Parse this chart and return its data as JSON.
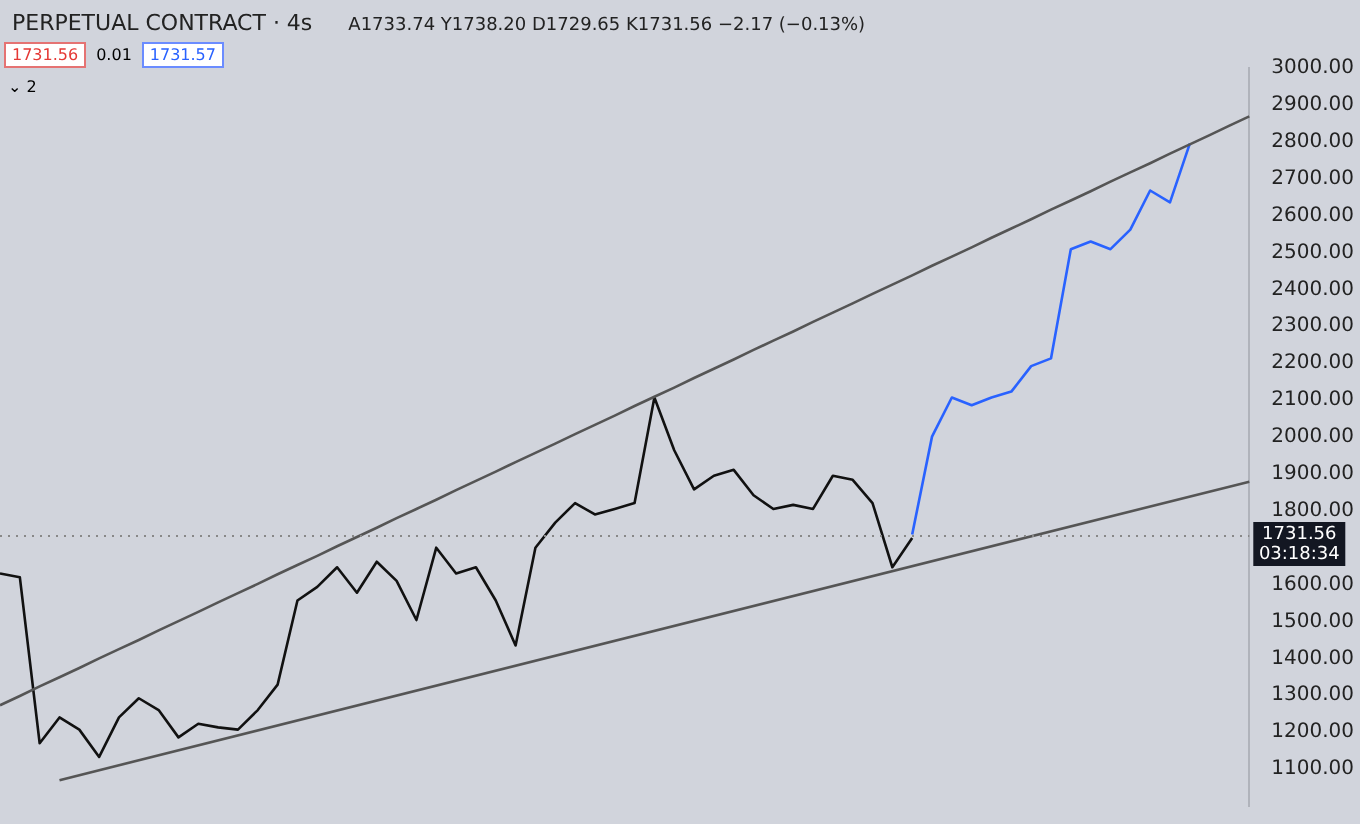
{
  "chart_data": {
    "type": "line",
    "title": "PERPETUAL CONTRACT · 4s",
    "subtitle": "A1733.74 Y1738.20 D1729.65 K1731.56 −2.17 (−0.13%)",
    "annotations": [
      "1731.56",
      "0.01",
      "1731.57",
      "⌄ 2",
      "03:18:34"
    ],
    "categories": [
      null,
      null,
      null,
      null,
      null,
      null,
      null,
      null,
      null,
      null,
      null,
      null,
      null,
      null,
      null,
      null,
      null,
      null,
      null,
      null,
      null,
      null,
      null,
      null,
      null,
      null,
      null,
      null,
      null,
      null,
      null,
      null,
      null,
      null,
      null,
      null,
      null,
      null,
      null,
      null,
      null,
      null,
      null,
      null,
      null,
      null,
      null,
      null,
      null,
      null,
      null,
      null,
      null,
      null,
      null,
      null,
      null,
      null,
      null,
      null,
      null,
      null,
      null,
      null
    ],
    "series": [
      {
        "color": "#555555",
        "values": [
          1273,
          1298,
          1324,
          1349,
          1374,
          1400,
          1425,
          1450,
          1476,
          1501,
          1526,
          1552,
          1577,
          1602,
          1628,
          1653,
          1678,
          1704,
          1729,
          1754,
          1780,
          1805,
          1830,
          1856,
          1881,
          1906,
          1932,
          1957,
          1982,
          2008,
          2033,
          2058,
          2084,
          2109,
          2134,
          2160,
          2185,
          2210,
          2236,
          2261,
          2286,
          2312,
          2337,
          2362,
          2388,
          2413,
          2438,
          2464,
          2489,
          2514,
          2540,
          2565,
          2590,
          2616,
          2641,
          2666,
          2692,
          2717,
          2742,
          2768,
          2793,
          2818,
          2844,
          2869
        ]
      },
      {
        "color": "#111111",
        "values": [
          1630,
          1620,
          1170,
          1240,
          1207,
          1133,
          1240,
          1292,
          1260,
          1186,
          1223,
          1213,
          1207,
          1260,
          1329,
          1557,
          1594,
          1647,
          1578,
          1662,
          1610,
          1504,
          1700,
          1630,
          1647,
          1557,
          1435,
          1700,
          1768,
          1821,
          1790,
          1805,
          1821,
          2107,
          1964,
          1858,
          1895,
          1911,
          1842,
          1805,
          1816,
          1805,
          1895,
          1884,
          1821,
          1647,
          1726,
          null,
          null,
          null,
          null,
          null,
          null,
          null,
          null,
          null,
          null,
          null,
          null,
          null,
          null,
          null,
          null,
          null
        ]
      },
      {
        "color": "#2962ff",
        "values": [
          null,
          null,
          null,
          null,
          null,
          null,
          null,
          null,
          null,
          null,
          null,
          null,
          null,
          null,
          null,
          null,
          null,
          null,
          null,
          null,
          null,
          null,
          null,
          null,
          null,
          null,
          null,
          null,
          null,
          null,
          null,
          null,
          null,
          null,
          null,
          null,
          null,
          null,
          null,
          null,
          null,
          null,
          null,
          null,
          null,
          null,
          1736,
          2001,
          2107,
          2086,
          2107,
          2123,
          2192,
          2213,
          2509,
          2530,
          2509,
          2562,
          2668,
          2636,
          2795,
          null,
          null,
          null
        ]
      },
      {
        "color": "#555555",
        "values": [
          null,
          null,
          null,
          1070,
          null,
          null,
          null,
          null,
          null,
          null,
          null,
          null,
          null,
          null,
          null,
          null,
          null,
          null,
          null,
          null,
          null,
          null,
          null,
          null,
          null,
          null,
          null,
          null,
          null,
          null,
          null,
          null,
          null,
          null,
          null,
          null,
          null,
          null,
          null,
          null,
          null,
          null,
          null,
          null,
          null,
          null,
          null,
          null,
          null,
          null,
          null,
          null,
          null,
          null,
          null,
          null,
          null,
          null,
          null,
          null,
          null,
          null,
          null,
          1879
        ]
      }
    ],
    "ylim": [
      1000,
      3000
    ],
    "yticks": [
      {
        "value": 1100,
        "label": "1100.00"
      },
      {
        "value": 1200,
        "label": "1200.00"
      },
      {
        "value": 1300,
        "label": "1300.00"
      },
      {
        "value": 1400,
        "label": "1400.00"
      },
      {
        "value": 1500,
        "label": "1500.00"
      },
      {
        "value": 1600,
        "label": "1600.00"
      },
      {
        "value": 1800,
        "label": "1800.00"
      },
      {
        "value": 1900,
        "label": "1900.00"
      },
      {
        "value": 2000,
        "label": "2000.00"
      },
      {
        "value": 2100,
        "label": "2100.00"
      },
      {
        "value": 2200,
        "label": "2200.00"
      },
      {
        "value": 2300,
        "label": "2300.00"
      },
      {
        "value": 2400,
        "label": "2400.00"
      },
      {
        "value": 2500,
        "label": "2500.00"
      },
      {
        "value": 2600,
        "label": "2600.00"
      },
      {
        "value": 2700,
        "label": "2700.00"
      },
      {
        "value": 2800,
        "label": "2800.00"
      },
      {
        "value": 2900,
        "label": "2900.00"
      },
      {
        "value": 3000,
        "label": "3000.00"
      }
    ],
    "ref_lines": [
      {
        "axis": "y",
        "value": 1731.56,
        "label": "1731.56",
        "color": "#888888",
        "line_style": "dotted"
      }
    ],
    "tick_labels": "y",
    "grid": false,
    "legend": false,
    "marker": "none",
    "line_style": "solid"
  }
}
